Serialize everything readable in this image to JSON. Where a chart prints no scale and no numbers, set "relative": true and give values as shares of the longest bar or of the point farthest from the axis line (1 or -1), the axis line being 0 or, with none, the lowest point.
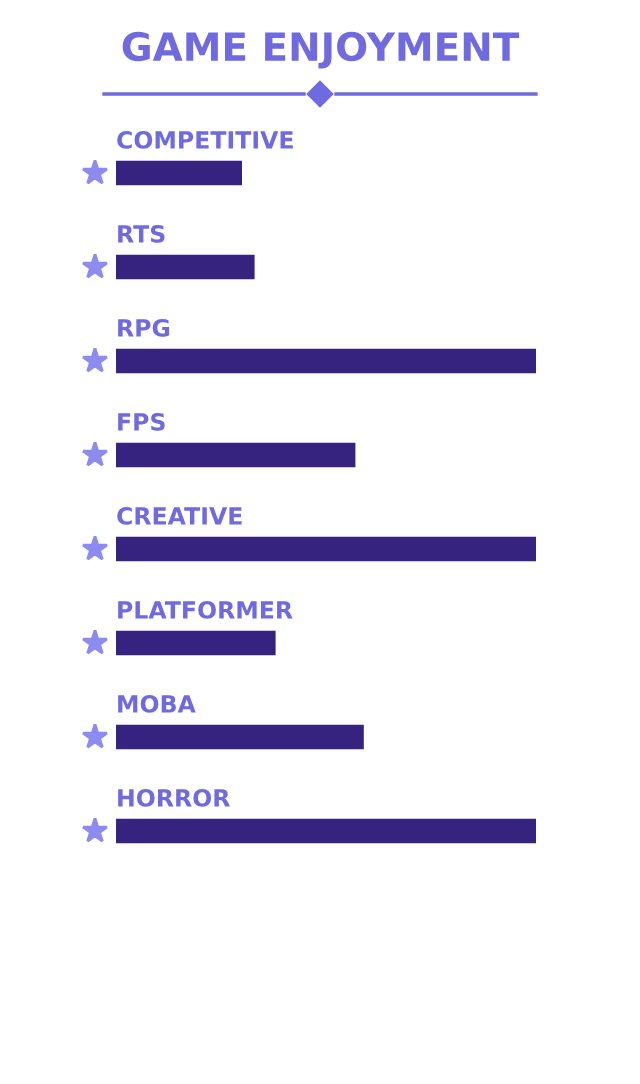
{
  "chart_data": {
    "type": "bar",
    "orientation": "horizontal",
    "relative": true,
    "title": "GAME ENJOYMENT",
    "categories": [
      "COMPETITIVE",
      "RTS",
      "RPG",
      "FPS",
      "CREATIVE",
      "PLATFORMER",
      "MOBA",
      "HORROR"
    ],
    "values": [
      0.3,
      0.33,
      1,
      0.57,
      1,
      0.38,
      0.59,
      1
    ],
    "color": "#35237f"
  }
}
